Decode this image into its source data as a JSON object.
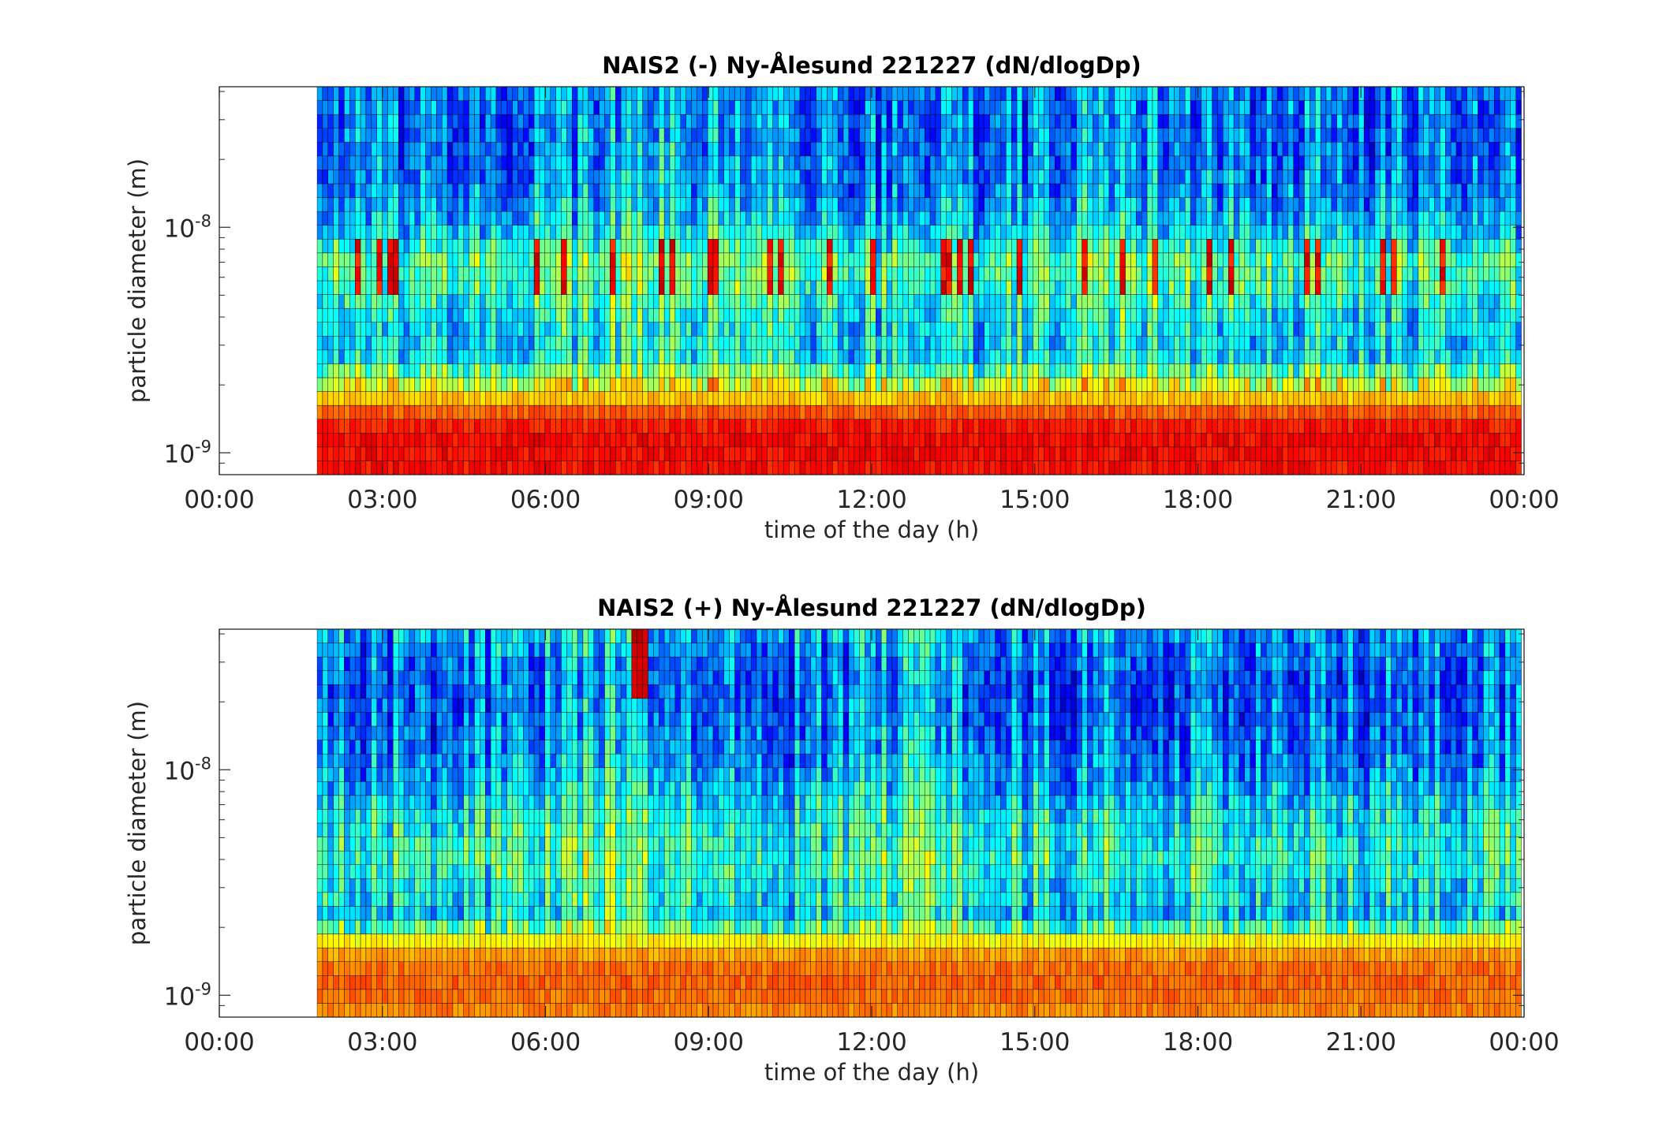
{
  "chart_data": [
    {
      "type": "heatmap",
      "title": "NAIS2 (-) Ny-Ålesund 221227 (dN/dlogDp)",
      "xlabel": "time of the day (h)",
      "ylabel": "particle diameter (m)",
      "x_tick_labels": [
        "00:00",
        "03:00",
        "06:00",
        "09:00",
        "12:00",
        "15:00",
        "18:00",
        "21:00",
        "00:00"
      ],
      "x_ticks_hours": [
        0,
        3,
        6,
        9,
        12,
        15,
        18,
        21,
        24
      ],
      "xlim_hours": [
        0,
        24
      ],
      "y_scale": "log",
      "y_tick_labels": [
        {
          "base": "10",
          "exp": "-9"
        },
        {
          "base": "10",
          "exp": "-8"
        }
      ],
      "y_ticks_m": [
        1e-09,
        1e-08
      ],
      "ylim_m": [
        8e-10,
        4.2e-08
      ],
      "data_start_hour": 1.8,
      "data_end_hour": 23.95,
      "time_bins": 222,
      "diameter_bins": 28,
      "colormap": "jet",
      "colorbar": false,
      "grid": false,
      "value_scale": "relative 0-1 (no colorbar shown)",
      "profile": {
        "diameter_m": [
          8e-10,
          1.1e-09,
          1.4e-09,
          1.9e-09,
          2.7e-09,
          4e-09,
          5.5e-09,
          7e-09,
          1e-08,
          1.5e-08,
          2.2e-08,
          3e-08,
          4.2e-08
        ],
        "typical_level": [
          0.86,
          0.88,
          0.84,
          0.62,
          0.34,
          0.36,
          0.44,
          0.48,
          0.32,
          0.26,
          0.24,
          0.24,
          0.25
        ]
      },
      "features": [
        {
          "description": "persistent high concentrations below 1.4e-9 m",
          "start_hour": 1.8,
          "end_hour": 23.95
        },
        {
          "description": "intermittent high-concentration streaks near 5e-9 to 8e-9 m",
          "start_hour": 2.0,
          "end_hour": 23.5
        },
        {
          "description": "elevated background around 6-10 h and 15-18 h",
          "start_hour": 6.0,
          "end_hour": 18.0
        }
      ]
    },
    {
      "type": "heatmap",
      "title": "NAIS2 (+) Ny-Ålesund 221227 (dN/dlogDp)",
      "xlabel": "time of the day (h)",
      "ylabel": "particle diameter (m)",
      "x_tick_labels": [
        "00:00",
        "03:00",
        "06:00",
        "09:00",
        "12:00",
        "15:00",
        "18:00",
        "21:00",
        "00:00"
      ],
      "x_ticks_hours": [
        0,
        3,
        6,
        9,
        12,
        15,
        18,
        21,
        24
      ],
      "xlim_hours": [
        0,
        24
      ],
      "y_scale": "log",
      "y_tick_labels": [
        {
          "base": "10",
          "exp": "-9"
        },
        {
          "base": "10",
          "exp": "-8"
        }
      ],
      "y_ticks_m": [
        1e-09,
        1e-08
      ],
      "ylim_m": [
        8e-10,
        4.2e-08
      ],
      "data_start_hour": 1.8,
      "data_end_hour": 23.95,
      "time_bins": 222,
      "diameter_bins": 28,
      "colormap": "jet",
      "colorbar": false,
      "grid": false,
      "value_scale": "relative 0-1 (no colorbar shown)",
      "profile": {
        "diameter_m": [
          8e-10,
          1.1e-09,
          1.4e-09,
          1.7e-09,
          2.2e-09,
          3e-09,
          4e-09,
          6e-09,
          1e-08,
          1.5e-08,
          2.2e-08,
          3e-08,
          4.2e-08
        ],
        "typical_level": [
          0.74,
          0.78,
          0.76,
          0.66,
          0.34,
          0.38,
          0.42,
          0.38,
          0.28,
          0.24,
          0.22,
          0.24,
          0.3
        ]
      },
      "features": [
        {
          "description": "persistent high concentrations below 1.5e-9 m",
          "start_hour": 1.8,
          "end_hour": 23.95
        },
        {
          "description": "brief high-concentration streak near 3e-8 m",
          "start_hour": 7.6,
          "end_hour": 7.9
        },
        {
          "description": "elevated background around 6-8 h and 12-13 h",
          "start_hour": 6.0,
          "end_hour": 13.0
        }
      ]
    }
  ]
}
